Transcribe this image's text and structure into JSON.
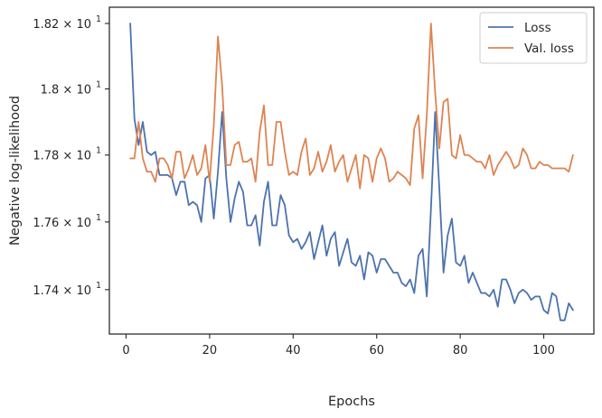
{
  "chart_data": {
    "type": "line",
    "xlabel": "Epochs",
    "ylabel": "Negative log-likelihood",
    "xlim": [
      -4,
      112
    ],
    "ylim": [
      17.27,
      18.25
    ],
    "y_scale": "log",
    "grid": false,
    "legend_placement": "top-right",
    "x_ticks": [
      0,
      20,
      40,
      60,
      80,
      100
    ],
    "x_tick_labels": [
      "0",
      "20",
      "40",
      "60",
      "80",
      "100"
    ],
    "y_ticks": [
      {
        "value": 17.4,
        "mantissa": "1.74",
        "base": "10",
        "exp": "1"
      },
      {
        "value": 17.6,
        "mantissa": "1.76",
        "base": "10",
        "exp": "1"
      },
      {
        "value": 17.8,
        "mantissa": "1.78",
        "base": "10",
        "exp": "1"
      },
      {
        "value": 18.0,
        "mantissa": "1.8",
        "base": "10",
        "exp": "1"
      },
      {
        "value": 18.2,
        "mantissa": "1.82",
        "base": "10",
        "exp": "1"
      }
    ],
    "series": [
      {
        "name": "Loss",
        "color": "#4c72b0",
        "x": [
          1,
          2,
          3,
          4,
          5,
          6,
          7,
          8,
          9,
          10,
          11,
          12,
          13,
          14,
          15,
          16,
          17,
          18,
          19,
          20,
          21,
          22,
          23,
          24,
          25,
          26,
          27,
          28,
          29,
          30,
          31,
          32,
          33,
          34,
          35,
          36,
          37,
          38,
          39,
          40,
          41,
          42,
          43,
          44,
          45,
          46,
          47,
          48,
          49,
          50,
          51,
          52,
          53,
          54,
          55,
          56,
          57,
          58,
          59,
          60,
          61,
          62,
          63,
          64,
          65,
          66,
          67,
          68,
          69,
          70,
          71,
          72,
          73,
          74,
          75,
          76,
          77,
          78,
          79,
          80,
          81,
          82,
          83,
          84,
          85,
          86,
          87,
          88,
          89,
          90,
          91,
          92,
          93,
          94,
          95,
          96,
          97,
          98,
          99,
          100,
          101,
          102,
          103,
          104,
          105,
          106,
          107
        ],
        "values": [
          18.2,
          17.91,
          17.83,
          17.9,
          17.81,
          17.8,
          17.81,
          17.74,
          17.74,
          17.74,
          17.73,
          17.68,
          17.72,
          17.72,
          17.65,
          17.66,
          17.65,
          17.6,
          17.73,
          17.74,
          17.61,
          17.75,
          17.93,
          17.73,
          17.6,
          17.67,
          17.72,
          17.69,
          17.59,
          17.59,
          17.62,
          17.53,
          17.66,
          17.72,
          17.59,
          17.59,
          17.68,
          17.65,
          17.56,
          17.54,
          17.55,
          17.52,
          17.54,
          17.57,
          17.49,
          17.54,
          17.59,
          17.5,
          17.55,
          17.57,
          17.47,
          17.51,
          17.55,
          17.48,
          17.47,
          17.5,
          17.43,
          17.51,
          17.5,
          17.45,
          17.49,
          17.49,
          17.47,
          17.45,
          17.45,
          17.42,
          17.41,
          17.43,
          17.39,
          17.5,
          17.52,
          17.38,
          17.64,
          17.93,
          17.7,
          17.45,
          17.56,
          17.61,
          17.48,
          17.47,
          17.5,
          17.42,
          17.45,
          17.42,
          17.39,
          17.39,
          17.38,
          17.4,
          17.35,
          17.43,
          17.43,
          17.4,
          17.36,
          17.39,
          17.4,
          17.39,
          17.37,
          17.38,
          17.38,
          17.34,
          17.33,
          17.39,
          17.38,
          17.31,
          17.31,
          17.36,
          17.34
        ]
      },
      {
        "name": "Val. loss",
        "color": "#dd8452",
        "x": [
          1,
          2,
          3,
          4,
          5,
          6,
          7,
          8,
          9,
          10,
          11,
          12,
          13,
          14,
          15,
          16,
          17,
          18,
          19,
          20,
          21,
          22,
          23,
          24,
          25,
          26,
          27,
          28,
          29,
          30,
          31,
          32,
          33,
          34,
          35,
          36,
          37,
          38,
          39,
          40,
          41,
          42,
          43,
          44,
          45,
          46,
          47,
          48,
          49,
          50,
          51,
          52,
          53,
          54,
          55,
          56,
          57,
          58,
          59,
          60,
          61,
          62,
          63,
          64,
          65,
          66,
          67,
          68,
          69,
          70,
          71,
          72,
          73,
          74,
          75,
          76,
          77,
          78,
          79,
          80,
          81,
          82,
          83,
          84,
          85,
          86,
          87,
          88,
          89,
          90,
          91,
          92,
          93,
          94,
          95,
          96,
          97,
          98,
          99,
          100,
          101,
          102,
          103,
          104,
          105,
          106,
          107
        ],
        "values": [
          17.79,
          17.79,
          17.9,
          17.79,
          17.75,
          17.75,
          17.72,
          17.79,
          17.79,
          17.77,
          17.73,
          17.81,
          17.81,
          17.73,
          17.76,
          17.8,
          17.74,
          17.76,
          17.83,
          17.72,
          17.89,
          18.16,
          18.01,
          17.77,
          17.77,
          17.83,
          17.84,
          17.78,
          17.78,
          17.79,
          17.72,
          17.87,
          17.95,
          17.77,
          17.77,
          17.9,
          17.9,
          17.81,
          17.74,
          17.75,
          17.74,
          17.81,
          17.85,
          17.74,
          17.76,
          17.81,
          17.75,
          17.78,
          17.83,
          17.75,
          17.78,
          17.8,
          17.72,
          17.76,
          17.8,
          17.7,
          17.8,
          17.79,
          17.72,
          17.79,
          17.82,
          17.79,
          17.72,
          17.73,
          17.75,
          17.74,
          17.73,
          17.71,
          17.88,
          17.92,
          17.73,
          17.92,
          18.2,
          17.99,
          17.82,
          17.96,
          17.97,
          17.8,
          17.79,
          17.86,
          17.8,
          17.8,
          17.79,
          17.78,
          17.78,
          17.76,
          17.8,
          17.74,
          17.77,
          17.79,
          17.81,
          17.79,
          17.76,
          17.77,
          17.82,
          17.8,
          17.76,
          17.76,
          17.78,
          17.77,
          17.77,
          17.76,
          17.76,
          17.76,
          17.76,
          17.75,
          17.8
        ]
      }
    ]
  }
}
